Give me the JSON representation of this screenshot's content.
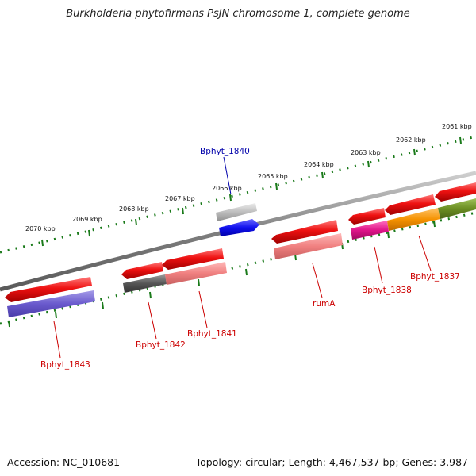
{
  "title": "Burkholderia phytofirmans PsJN chromosome 1, complete genome",
  "footer": {
    "accession": "Accession: NC_010681",
    "summary": "Topology: circular; Length: 4,467,537 bp; Genes: 3,987"
  },
  "ruler": {
    "unit": "kbp",
    "ticks": [
      {
        "label": "2061 kbp"
      },
      {
        "label": "2062 kbp"
      },
      {
        "label": "2063 kbp"
      },
      {
        "label": "2064 kbp"
      },
      {
        "label": "2065 kbp"
      },
      {
        "label": "2066 kbp"
      },
      {
        "label": "2067 kbp"
      },
      {
        "label": "2068 kbp"
      },
      {
        "label": "2069 kbp"
      },
      {
        "label": "2070 kbp"
      }
    ]
  },
  "gene_labels": {
    "bphyt_1840": "Bphyt_1840",
    "bphyt_1843": "Bphyt_1843",
    "bphyt_1842": "Bphyt_1842",
    "bphyt_1841": "Bphyt_1841",
    "ruma": "rumA",
    "bphyt_1838": "Bphyt_1838",
    "bphyt_1837": "Bphyt_1837"
  },
  "colors": {
    "gene_red": "#ee1111",
    "cds_blue_gray": "#6a5acd",
    "cds_pink": "#f08080",
    "cds_dark_gray": "#555555",
    "cds_magenta": "#e0168a",
    "cds_orange": "#f59200",
    "cds_olive": "#6b8e23",
    "cds_blue": "#1010ee",
    "cds_silver": "#bdbdbd",
    "backbone": "#888888",
    "tick": "#1a7a1a",
    "label_red": "#cc0000",
    "label_blue": "#0000aa"
  }
}
